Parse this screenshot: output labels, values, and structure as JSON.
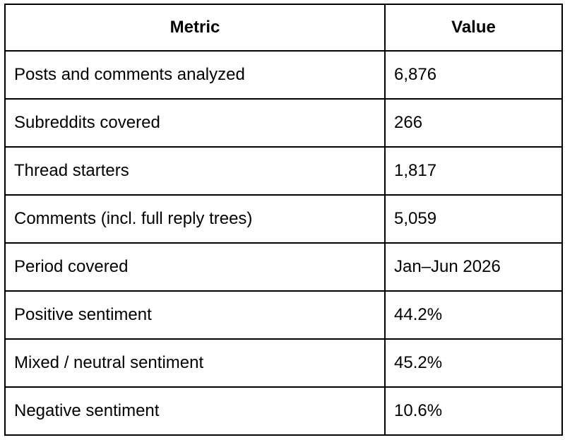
{
  "table": {
    "headers": {
      "metric": "Metric",
      "value": "Value"
    },
    "rows": [
      {
        "metric": "Posts and comments analyzed",
        "value": "6,876"
      },
      {
        "metric": "Subreddits covered",
        "value": "266"
      },
      {
        "metric": "Thread starters",
        "value": "1,817"
      },
      {
        "metric": "Comments (incl. full reply trees)",
        "value": "5,059"
      },
      {
        "metric": "Period covered",
        "value": "Jan–Jun 2026"
      },
      {
        "metric": "Positive sentiment",
        "value": "44.2%"
      },
      {
        "metric": "Mixed / neutral sentiment",
        "value": "45.2%"
      },
      {
        "metric": "Negative sentiment",
        "value": "10.6%"
      }
    ]
  }
}
